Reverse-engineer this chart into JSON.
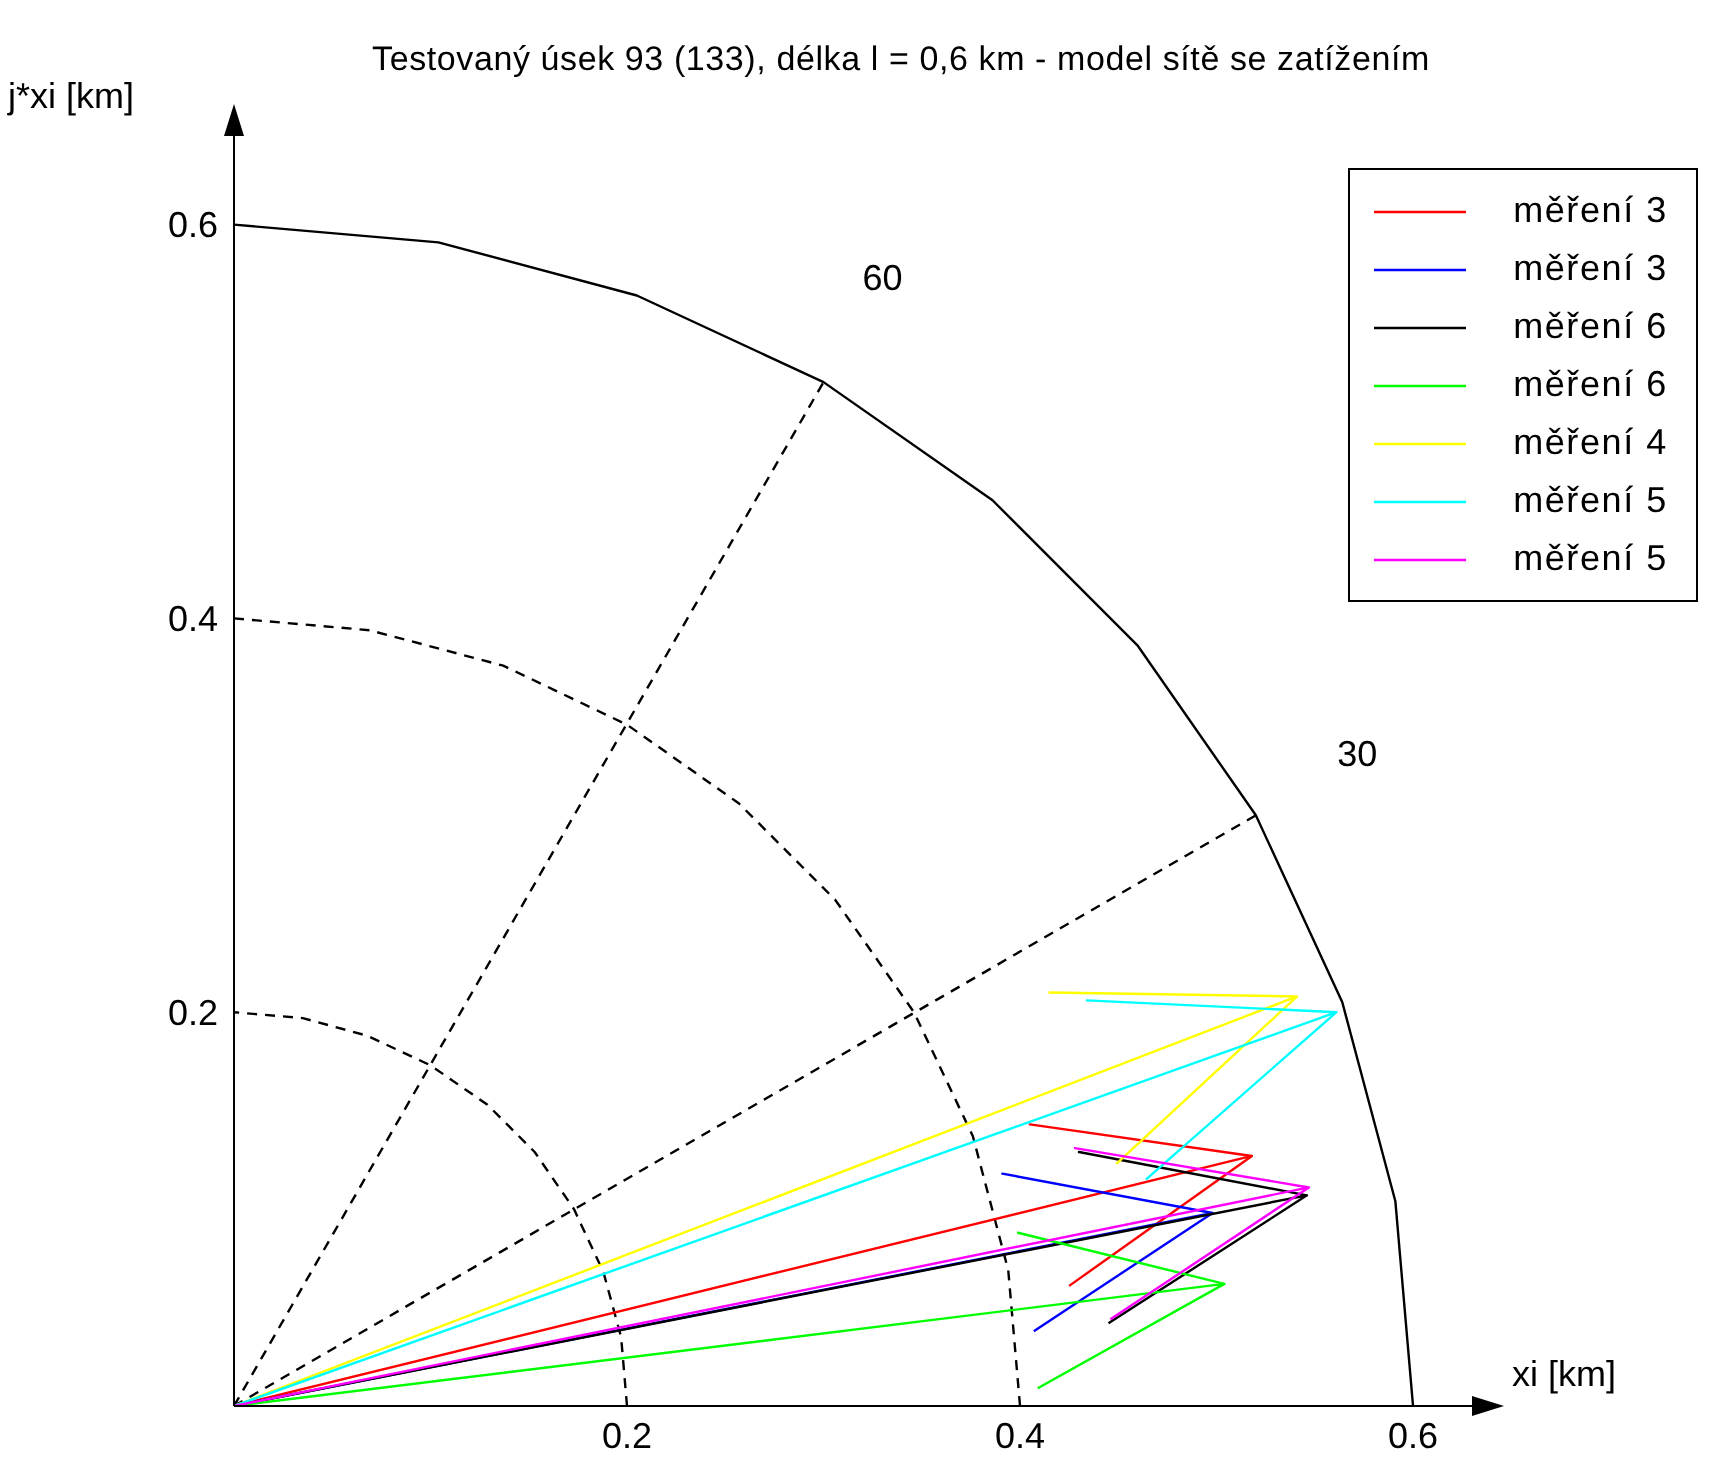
{
  "chart_data": {
    "type": "line",
    "title": "Testovaný úsek 93 (133), délka l = 0,6 km - model sítě se zatížením",
    "xlabel": "xi [km]",
    "ylabel": "j*xi [km]",
    "xlim": [
      0,
      0.63
    ],
    "ylim": [
      0,
      0.645
    ],
    "xticks": [
      0.2,
      0.4,
      0.6
    ],
    "yticks": [
      0.2,
      0.4,
      0.6
    ],
    "legend": "top right",
    "marker": "none",
    "line_style": "solid",
    "annotations": [
      "60",
      "30"
    ],
    "series": [
      {
        "color": "#000000",
        "line_style": "dashed",
        "x": [
          0.2,
          0.197,
          0.188,
          0.173,
          0.153,
          0.129,
          0.1,
          0.068,
          0.035,
          0
        ],
        "values": [
          0,
          0.035,
          0.068,
          0.1,
          0.129,
          0.153,
          0.173,
          0.188,
          0.197,
          0.2
        ]
      },
      {
        "color": "#000000",
        "line_style": "dashed",
        "x": [
          0.4,
          0.394,
          0.376,
          0.346,
          0.306,
          0.257,
          0.2,
          0.137,
          0.069,
          0
        ],
        "values": [
          0,
          0.069,
          0.137,
          0.2,
          0.257,
          0.306,
          0.346,
          0.376,
          0.394,
          0.4
        ]
      },
      {
        "color": "#000000",
        "x": [
          0.6,
          0.591,
          0.564,
          0.52,
          0.46,
          0.386,
          0.3,
          0.205,
          0.104,
          0
        ],
        "values": [
          0,
          0.104,
          0.205,
          0.3,
          0.386,
          0.46,
          0.52,
          0.564,
          0.591,
          0.6
        ]
      },
      {
        "color": "#000000",
        "line_style": "dashed",
        "x": [
          0,
          0.52
        ],
        "values": [
          0,
          0.3
        ]
      },
      {
        "color": "#000000",
        "line_style": "dashed",
        "x": [
          0,
          0.3
        ],
        "values": [
          0,
          0.52
        ]
      },
      {
        "name": "měření 3",
        "color": "#ff0000",
        "x": [
          0,
          0.518,
          0.405,
          0.518,
          0.425
        ],
        "values": [
          0,
          0.127,
          0.143,
          0.127,
          0.061
        ]
      },
      {
        "name": "měření 3",
        "color": "#0000ff",
        "x": [
          0,
          0.498,
          0.391,
          0.498,
          0.407
        ],
        "values": [
          0,
          0.098,
          0.118,
          0.098,
          0.038
        ]
      },
      {
        "name": "měření 6",
        "color": "#000000",
        "x": [
          0,
          0.546,
          0.43,
          0.546,
          0.445
        ],
        "values": [
          0,
          0.107,
          0.129,
          0.107,
          0.042
        ]
      },
      {
        "name": "měření 6",
        "color": "#00ff00",
        "x": [
          0,
          0.504,
          0.399,
          0.504,
          0.409
        ],
        "values": [
          0,
          0.062,
          0.088,
          0.062,
          0.009
        ]
      },
      {
        "name": "měření 4",
        "color": "#ffff00",
        "x": [
          0,
          0.541,
          0.415,
          0.541,
          0.449
        ],
        "values": [
          0,
          0.208,
          0.21,
          0.208,
          0.123
        ]
      },
      {
        "name": "měření 5",
        "color": "#00ffff",
        "x": [
          0,
          0.561,
          0.434,
          0.561,
          0.464
        ],
        "values": [
          0,
          0.2,
          0.206,
          0.2,
          0.115
        ]
      },
      {
        "name": "měření 5",
        "color": "#ff00ff",
        "x": [
          0,
          0.547,
          0.428,
          0.547,
          0.446
        ],
        "values": [
          0,
          0.111,
          0.131,
          0.111,
          0.044
        ]
      }
    ]
  }
}
